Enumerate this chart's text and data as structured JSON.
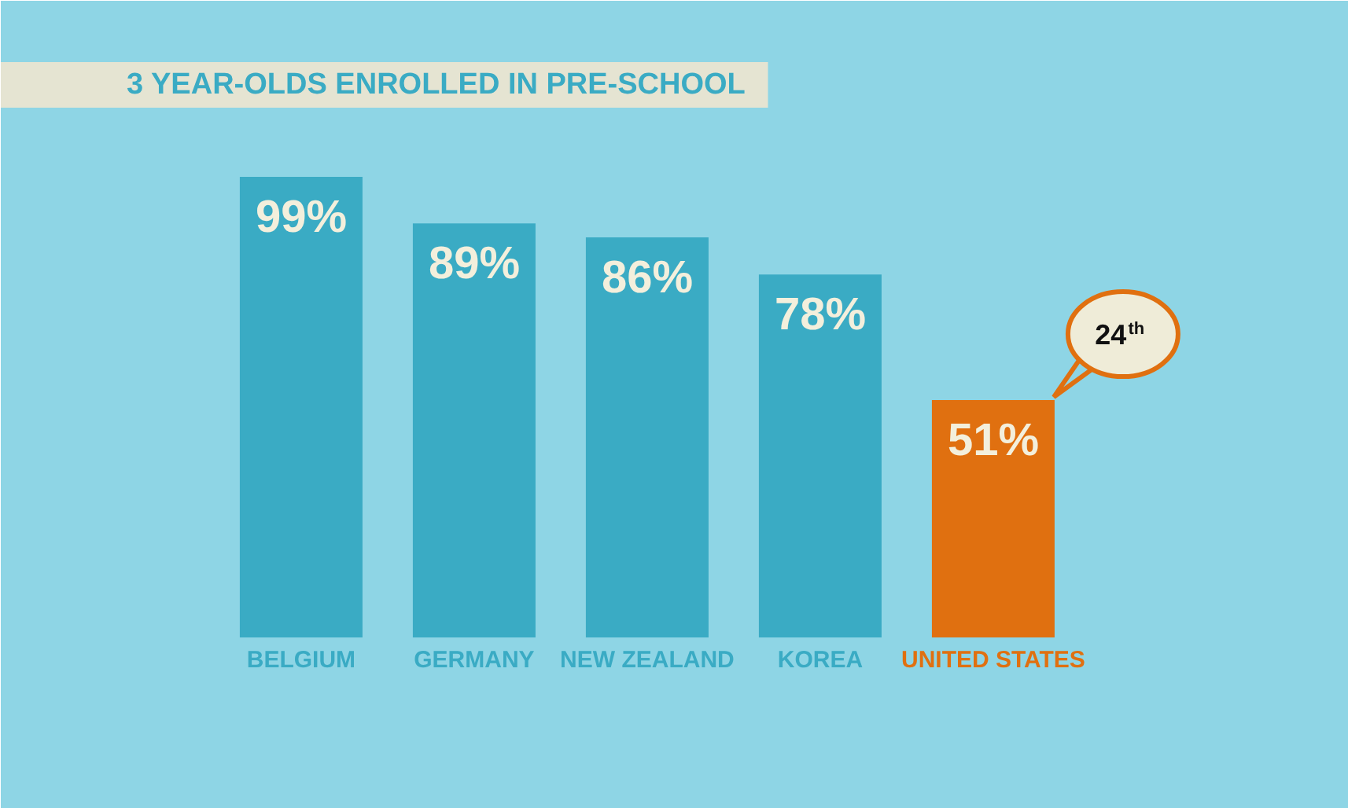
{
  "chart_data": {
    "type": "bar",
    "title": "3 YEAR-OLDS ENROLLED IN PRE-SCHOOL",
    "categories": [
      "BELGIUM",
      "GERMANY",
      "NEW ZEALAND",
      "KOREA",
      "UNITED STATES"
    ],
    "values": [
      99,
      89,
      86,
      78,
      51
    ],
    "value_labels": [
      "99%",
      "89%",
      "86%",
      "78%",
      "51%"
    ],
    "colors": [
      "#3aabc4",
      "#3aabc4",
      "#3aabc4",
      "#3aabc4",
      "#e07010"
    ],
    "annotations": [
      "24$^{th}$"
    ],
    "grid": false
  }
}
